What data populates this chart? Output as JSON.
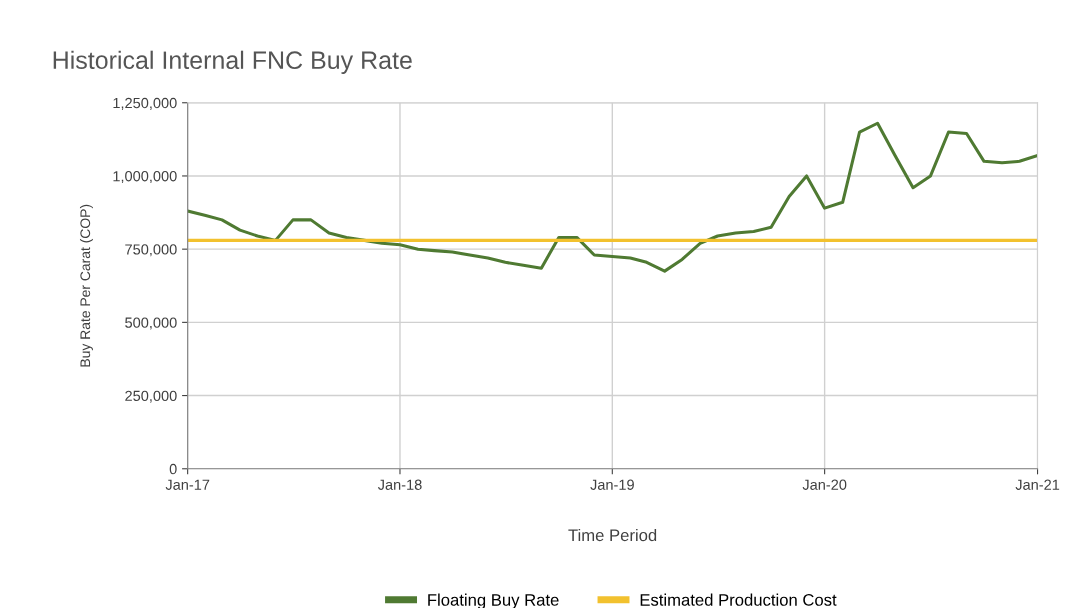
{
  "chart_data": {
    "type": "line",
    "title": "Historical Internal FNC Buy Rate",
    "xlabel": "Time Period",
    "ylabel": "Buy Rate Per Carat (COP)",
    "x": [
      "2017-01",
      "2017-02",
      "2017-03",
      "2017-04",
      "2017-05",
      "2017-06",
      "2017-07",
      "2017-08",
      "2017-09",
      "2017-10",
      "2017-11",
      "2017-12",
      "2018-01",
      "2018-02",
      "2018-03",
      "2018-04",
      "2018-05",
      "2018-06",
      "2018-07",
      "2018-08",
      "2018-09",
      "2018-10",
      "2018-11",
      "2018-12",
      "2019-01",
      "2019-02",
      "2019-03",
      "2019-04",
      "2019-05",
      "2019-06",
      "2019-07",
      "2019-08",
      "2019-09",
      "2019-10",
      "2019-11",
      "2019-12",
      "2020-01",
      "2020-02",
      "2020-03",
      "2020-04",
      "2020-05",
      "2020-06",
      "2020-07",
      "2020-08",
      "2020-09",
      "2020-10",
      "2020-11",
      "2020-12",
      "2021-01"
    ],
    "series": [
      {
        "name": "Floating Buy Rate",
        "color": "#4f7a32",
        "values": [
          880000,
          865000,
          850000,
          815000,
          795000,
          780000,
          850000,
          850000,
          805000,
          790000,
          780000,
          770000,
          765000,
          750000,
          745000,
          740000,
          730000,
          720000,
          705000,
          695000,
          685000,
          790000,
          790000,
          730000,
          725000,
          720000,
          705000,
          675000,
          715000,
          770000,
          795000,
          805000,
          810000,
          825000,
          930000,
          1000000,
          890000,
          910000,
          1150000,
          1180000,
          1070000,
          960000,
          1000000,
          1150000,
          1145000,
          1050000,
          1045000,
          1050000,
          1070000
        ]
      },
      {
        "name": "Estimated Production Cost",
        "color": "#f2c12e",
        "values": [
          780000,
          780000,
          780000,
          780000,
          780000,
          780000,
          780000,
          780000,
          780000,
          780000,
          780000,
          780000,
          780000,
          780000,
          780000,
          780000,
          780000,
          780000,
          780000,
          780000,
          780000,
          780000,
          780000,
          780000,
          780000,
          780000,
          780000,
          780000,
          780000,
          780000,
          780000,
          780000,
          780000,
          780000,
          780000,
          780000,
          780000,
          780000,
          780000,
          780000,
          780000,
          780000,
          780000,
          780000,
          780000,
          780000,
          780000,
          780000,
          780000
        ]
      }
    ],
    "xlim": [
      "2017-01",
      "2021-01"
    ],
    "xticks": [
      {
        "value": "2017-01",
        "label": "Jan-17"
      },
      {
        "value": "2018-01",
        "label": "Jan-18"
      },
      {
        "value": "2019-01",
        "label": "Jan-19"
      },
      {
        "value": "2020-01",
        "label": "Jan-20"
      },
      {
        "value": "2021-01",
        "label": "Jan-21"
      }
    ],
    "ylim": [
      0,
      1250000
    ],
    "yticks": [
      {
        "value": 0,
        "label": "0"
      },
      {
        "value": 250000,
        "label": "250,000"
      },
      {
        "value": 500000,
        "label": "500,000"
      },
      {
        "value": 750000,
        "label": "750,000"
      },
      {
        "value": 1000000,
        "label": "1,000,000"
      },
      {
        "value": 1250000,
        "label": "1,250,000"
      }
    ],
    "grid": true,
    "legend": "bottom",
    "marker": "none",
    "line_style": "solid"
  }
}
